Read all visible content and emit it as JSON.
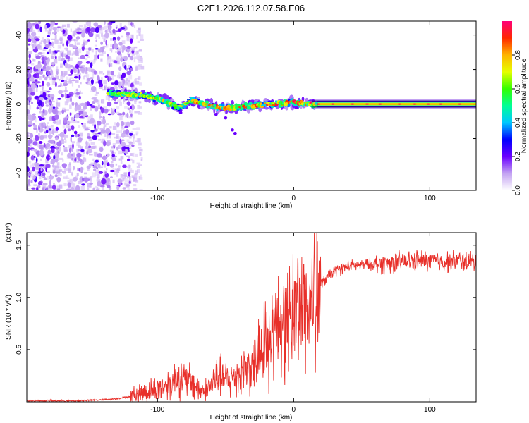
{
  "title": "C2E1.2026.112.07.58.E06",
  "chart_data": [
    {
      "type": "heatmap",
      "title": "C2E1.2026.112.07.58.E06",
      "xlabel": "Height of straight line (km)",
      "ylabel": "Frequency (Hz)",
      "xlim": [
        -196,
        134
      ],
      "ylim": [
        -50,
        48
      ],
      "xticks": [
        -100,
        0,
        100
      ],
      "yticks": [
        -40,
        -20,
        0,
        20,
        40
      ],
      "colorbar": {
        "label": "Normalized spectral amplitude",
        "range": [
          0,
          1
        ],
        "ticks": [
          0.0,
          0.2,
          0.4,
          0.6,
          0.8
        ],
        "colors": [
          "#ffffff",
          "#c3a2f2",
          "#6a00ff",
          "#0000ff",
          "#00c8ff",
          "#00ff96",
          "#32ff00",
          "#e6ff00",
          "#ffb400",
          "#ff2800",
          "#ff0078"
        ]
      },
      "features": {
        "noise_region_x": [
          -196,
          -118
        ],
        "signal_track": [
          {
            "x": -136,
            "freq": 6
          },
          {
            "x": -110,
            "freq": 5
          },
          {
            "x": -95,
            "freq": 2
          },
          {
            "x": -85,
            "freq": -2
          },
          {
            "x": -75,
            "freq": 2
          },
          {
            "x": -65,
            "freq": 0
          },
          {
            "x": -55,
            "freq": -2
          },
          {
            "x": -45,
            "freq": -2
          },
          {
            "x": -30,
            "freq": -1
          },
          {
            "x": -15,
            "freq": 0
          },
          {
            "x": 0,
            "freq": 1
          },
          {
            "x": 15,
            "freq": 0
          },
          {
            "x": 134,
            "freq": 0
          }
        ],
        "stable_band_x": [
          15,
          134
        ]
      }
    },
    {
      "type": "line",
      "xlabel": "Height of straight line (km)",
      "ylabel": "SNR (10 * v/v)",
      "scale_note": "(x10⁴)",
      "xlim": [
        -196,
        134
      ],
      "ylim": [
        0,
        1.62
      ],
      "xticks": [
        -100,
        0,
        100
      ],
      "yticks": [
        0.5,
        1.0,
        1.5
      ],
      "ytick_labels": [
        "0.5",
        "1.0",
        "1.5"
      ],
      "series": [
        {
          "name": "SNR",
          "color": "#e8302a",
          "x": [
            -196,
            -180,
            -160,
            -140,
            -130,
            -120,
            -110,
            -100,
            -90,
            -85,
            -80,
            -75,
            -70,
            -65,
            -60,
            -55,
            -50,
            -45,
            -40,
            -35,
            -30,
            -25,
            -20,
            -15,
            -10,
            -5,
            0,
            5,
            10,
            15,
            20,
            25,
            30,
            40,
            50,
            60,
            70,
            80,
            90,
            100,
            110,
            120,
            134
          ],
          "y": [
            0.01,
            0.01,
            0.01,
            0.02,
            0.03,
            0.05,
            0.09,
            0.12,
            0.18,
            0.25,
            0.2,
            0.2,
            0.12,
            0.1,
            0.18,
            0.25,
            0.2,
            0.22,
            0.28,
            0.32,
            0.35,
            0.45,
            0.52,
            0.65,
            0.78,
            0.75,
            0.88,
            0.95,
            0.9,
            1.0,
            1.12,
            1.2,
            1.25,
            1.3,
            1.31,
            1.32,
            1.33,
            1.34,
            1.35,
            1.35,
            1.34,
            1.35,
            1.34
          ]
        }
      ]
    }
  ]
}
